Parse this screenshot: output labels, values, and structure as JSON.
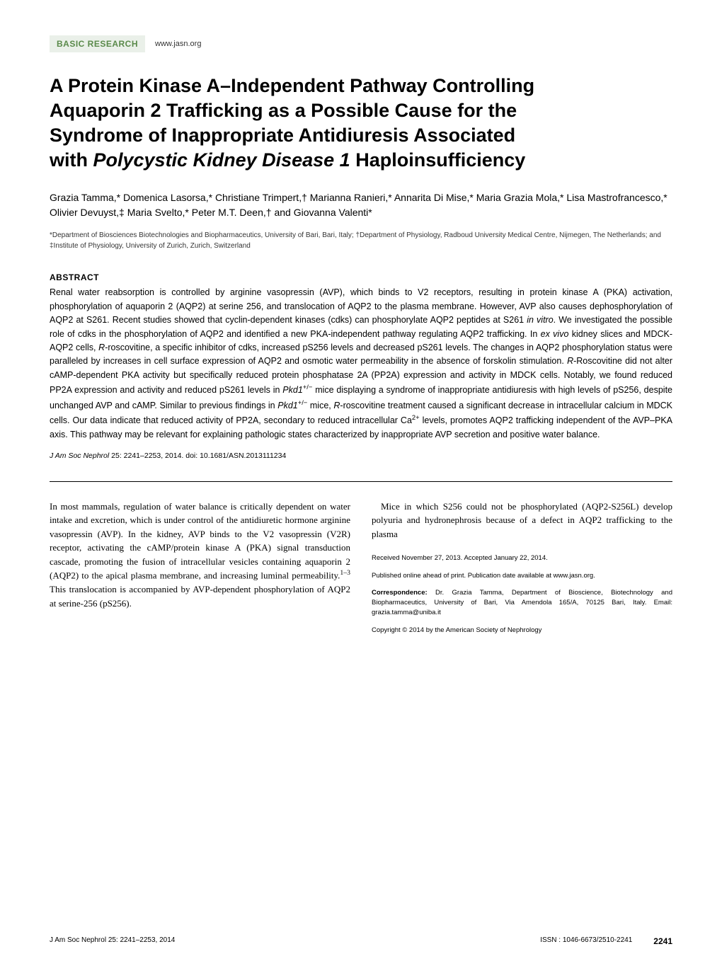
{
  "header": {
    "category": "BASIC RESEARCH",
    "url": "www.jasn.org"
  },
  "title_parts": {
    "l1": "A Protein Kinase A–Independent Pathway Controlling",
    "l2": "Aquaporin 2 Trafficking as a Possible Cause for the",
    "l3": "Syndrome of Inappropriate Antidiuresis Associated",
    "l4": "with ",
    "l4_ital": "Polycystic Kidney Disease 1",
    "l4_end": " Haploinsufficiency"
  },
  "authors": "Grazia Tamma,* Domenica Lasorsa,* Christiane Trimpert,† Marianna Ranieri,* Annarita Di Mise,* Maria Grazia Mola,* Lisa Mastrofrancesco,* Olivier Devuyst,‡ Maria Svelto,* Peter M.T. Deen,† and Giovanna Valenti*",
  "affiliations": "*Department of Biosciences Biotechnologies and Biopharmaceutics, University of Bari, Bari, Italy; †Department of Physiology, Radboud University Medical Centre, Nijmegen, The Netherlands; and ‡Institute of Physiology, University of Zurich, Zurich, Switzerland",
  "abstract": {
    "heading": "ABSTRACT",
    "p1a": "Renal water reabsorption is controlled by arginine vasopressin (AVP), which binds to V2 receptors, resulting in protein kinase A (PKA) activation, phosphorylation of aquaporin 2 (AQP2) at serine 256, and translocation of AQP2 to the plasma membrane. However, AVP also causes dephosphorylation of AQP2 at S261. Recent studies showed that cyclin-dependent kinases (cdks) can phosphorylate AQP2 peptides at S261 ",
    "p1b_ital": "in vitro",
    "p1c": ". We investigated the possible role of cdks in the phosphorylation of AQP2 and identified a new PKA-independent pathway regulating AQP2 trafficking. In ",
    "p1d_ital": "ex vivo",
    "p1e": " kidney slices and MDCK-AQP2 cells, ",
    "p1f_ital": "R",
    "p1g": "-roscovitine, a specific inhibitor of cdks, increased pS256 levels and decreased pS261 levels. The changes in AQP2 phosphorylation status were paralleled by increases in cell surface expression of AQP2 and osmotic water permeability in the absence of forskolin stimulation. ",
    "p1h_ital": "R",
    "p1i": "-Roscovitine did not alter cAMP-dependent PKA activity but specifically reduced protein phosphatase 2A (PP2A) expression and activity in MDCK cells. Notably, we found reduced PP2A expression and activity and reduced pS261 levels in ",
    "p1j_ital": "Pkd1",
    "p1k_sup": "+/−",
    "p1l": " mice displaying a syndrome of inappropriate antidiuresis with high levels of pS256, despite unchanged AVP and cAMP. Similar to previous findings in ",
    "p1m_ital": "Pkd1",
    "p1n_sup": "+/−",
    "p1o": " mice, ",
    "p1p_ital": "R",
    "p1q": "-roscovitine treatment caused a significant decrease in intracellular calcium in MDCK cells. Our data indicate that reduced activity of PP2A, secondary to reduced intracellular Ca",
    "p1r_sup": "2+",
    "p1s": " levels, promotes AQP2 trafficking independent of the AVP–PKA axis. This pathway may be relevant for explaining pathologic states characterized by inappropriate AVP secretion and positive water balance."
  },
  "citation": {
    "journal_ital": "J Am Soc Nephrol",
    "rest": " 25: 2241–2253, 2014. doi: 10.1681/ASN.2013111234"
  },
  "body": {
    "left_p1": "In most mammals, regulation of water balance is critically dependent on water intake and excretion, which is under control of the antidiuretic hormone arginine vasopressin (AVP). In the kidney, AVP binds to the V2 vasopressin (V2R) receptor, activating the cAMP/protein kinase A (PKA) signal transduction cascade, promoting the fusion of intracellular vesicles containing aquaporin 2 (AQP2) to the apical plasma membrane, and increasing luminal permeability.",
    "left_p1_sup": "1–3",
    "left_p1_end": " This translocation is accompanied by AVP-dependent phosphorylation of AQP2 at serine-256 (pS256).",
    "right_p1": "Mice in which S256 could not be phosphorylated (AQP2-S256L) develop polyuria and hydronephrosis because of a defect in AQP2 trafficking to the plasma"
  },
  "meta": {
    "received": "Received November 27, 2013. Accepted January 22, 2014.",
    "pub_online": "Published online ahead of print. Publication date available at www.jasn.org.",
    "correspondence_label": "Correspondence:",
    "correspondence_text": " Dr. Grazia Tamma, Department of Bioscience, Biotechnology and Biopharmaceutics, University of Bari, Via Amendola 165/A, 70125 Bari, Italy. Email: grazia.tamma@uniba.it",
    "copyright": "Copyright © 2014 by the American Society of Nephrology"
  },
  "footer": {
    "left": "J Am Soc Nephrol 25: 2241–2253, 2014",
    "issn": "ISSN : 1046-6673/2510-2241",
    "page": "2241"
  },
  "colors": {
    "badge_bg": "#eaf0e9",
    "badge_text": "#5a8a4a",
    "text": "#000000",
    "bg": "#ffffff"
  }
}
